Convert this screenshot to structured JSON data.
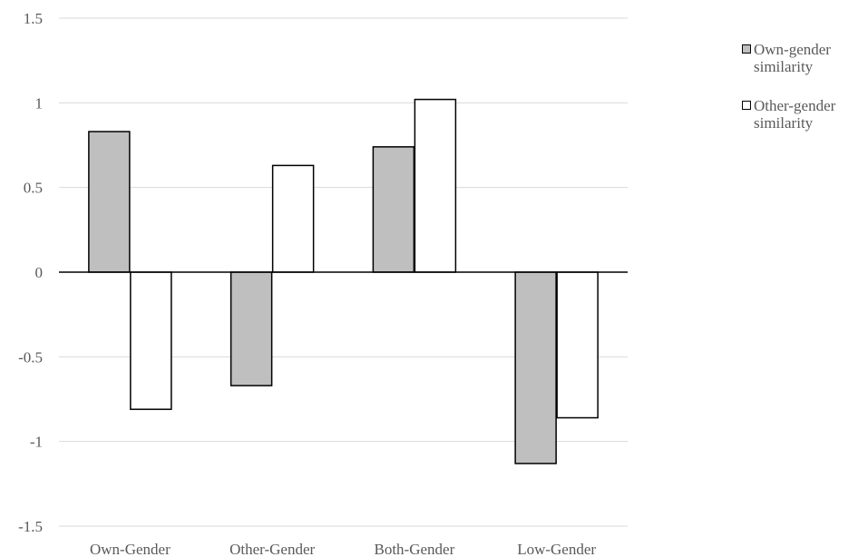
{
  "chart_data": {
    "type": "bar",
    "categories": [
      "Own-Gender",
      "Other-Gender",
      "Both-Gender",
      "Low-Gender"
    ],
    "series": [
      {
        "name": "Own-gender similarity",
        "values": [
          0.83,
          -0.67,
          0.74,
          -1.13
        ],
        "color": "#bfbfbf"
      },
      {
        "name": "Other-gender similarity",
        "values": [
          -0.81,
          0.63,
          1.02,
          -0.86
        ],
        "color": "#ffffff"
      }
    ],
    "ylim": [
      -1.5,
      1.5
    ],
    "yticks": [
      "1.5",
      "1",
      "0.5",
      "0",
      "-0.5",
      "-1",
      "-1.5"
    ],
    "grid": true,
    "legend_position": "right"
  }
}
